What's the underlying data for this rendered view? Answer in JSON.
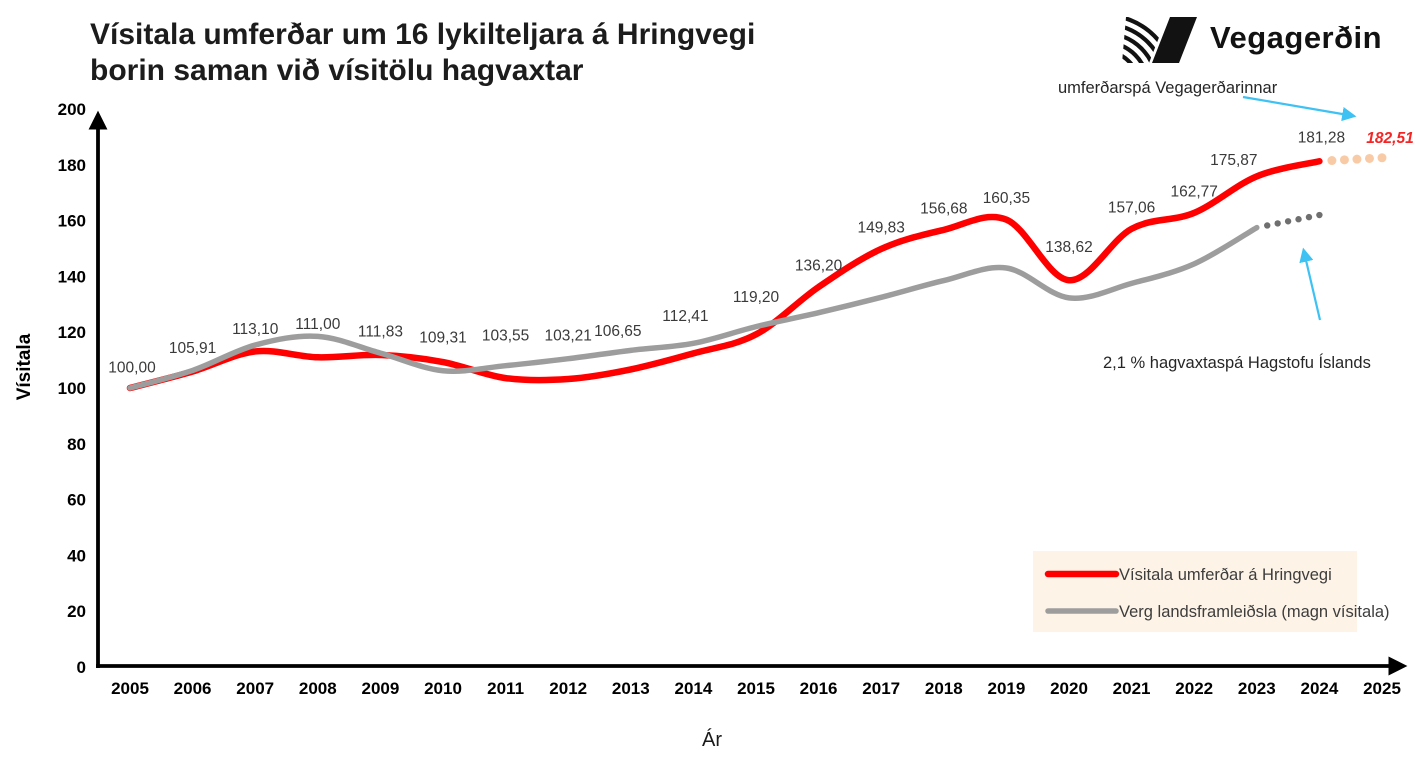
{
  "title": {
    "line1": "Vísitala umferðar um 16 lykilteljara á Hringvegi",
    "line2": "borin saman við vísitölu hagvaxtar"
  },
  "logo": {
    "name": "Vegagerðin"
  },
  "annotations": {
    "traffic_forecast_label": "umferðarspá Vegagerðarinnar",
    "gdp_forecast_label": "2,1 % hagvaxtaspá Hagstofu Íslands"
  },
  "colors": {
    "traffic_line": "#ff0000",
    "gdp_line": "#9d9d9d",
    "traffic_forecast_dots": "#f8cba6",
    "gdp_forecast_dots": "#6f6f6f",
    "annotation_arrow": "#3ec2f3",
    "legend_bg": "#fdf3e7",
    "forecast_value_text": "#f42525",
    "data_label_text": "#3a3a3a",
    "axis": "#000000"
  },
  "chart_data": {
    "type": "line",
    "title": "Vísitala umferðar um 16 lykilteljara á Hringvegi borin saman við vísitölu hagvaxtar",
    "xlabel": "Ár",
    "ylabel": "Vísitala",
    "x_min": 2005,
    "x_max": 2025,
    "ylim": [
      0,
      200
    ],
    "y_step": 20,
    "x_ticks": [
      2005,
      2006,
      2007,
      2008,
      2009,
      2010,
      2011,
      2012,
      2013,
      2014,
      2015,
      2016,
      2017,
      2018,
      2019,
      2020,
      2021,
      2022,
      2023,
      2024,
      2025
    ],
    "grid": false,
    "legend_position": "bottom-right",
    "series": [
      {
        "name": "Vísitala umferðar á Hringvegi",
        "color": "#ff0000",
        "width": 6.5,
        "years": [
          2005,
          2006,
          2007,
          2008,
          2009,
          2010,
          2011,
          2012,
          2013,
          2014,
          2015,
          2016,
          2017,
          2018,
          2019,
          2020,
          2021,
          2022,
          2023,
          2024
        ],
        "values": [
          100.0,
          105.91,
          113.1,
          111.0,
          111.83,
          109.31,
          103.55,
          103.21,
          106.65,
          112.41,
          119.2,
          136.2,
          149.83,
          156.68,
          160.35,
          138.62,
          157.06,
          162.77,
          175.87,
          181.28
        ],
        "labels": [
          "100,00",
          "105,91",
          "113,10",
          "111,00",
          "111,83",
          "109,31",
          "103,55",
          "103,21",
          "106,65",
          "112,41",
          "119,20",
          "136,20",
          "149,83",
          "156,68",
          "160,35",
          "138,62",
          "157,06",
          "162,77",
          "175,87",
          "181,28"
        ],
        "label_dx": {
          "2005": 2,
          "2013": -13,
          "2014": -8,
          "2023": -23,
          "2024": 2
        },
        "label_dy": {
          "2005": -21,
          "2006": -24,
          "2007": -23,
          "2008": -34,
          "2009": -24,
          "2010": -25,
          "2011": -43,
          "2012": -44,
          "2013": -39,
          "2014": -38,
          "2015": -38,
          "2020": -34,
          "2023": -17,
          "2024": -24
        },
        "forecast": {
          "to_year": 2025,
          "to_value": 182.51,
          "dots": 5,
          "dot_r": 4.5,
          "color": "#f8cba6",
          "label": "182,51"
        }
      },
      {
        "name": "Verg landsframleiðsla (magn vísitala)",
        "color": "#9d9d9d",
        "width": 5.5,
        "years": [
          2005,
          2006,
          2007,
          2008,
          2009,
          2010,
          2011,
          2012,
          2013,
          2014,
          2015,
          2016,
          2017,
          2018,
          2019,
          2020,
          2021,
          2022,
          2023
        ],
        "values": [
          100,
          106.3,
          115.4,
          118.5,
          112.5,
          106.2,
          108,
          110.5,
          113.5,
          116,
          122,
          127,
          132.5,
          138.5,
          143,
          132.3,
          137.5,
          144.5,
          157.5
        ],
        "forecast": {
          "to_year": 2024,
          "to_value": 162,
          "dots": 6,
          "dot_r": 3.2,
          "color": "#6f6f6f"
        }
      }
    ]
  }
}
